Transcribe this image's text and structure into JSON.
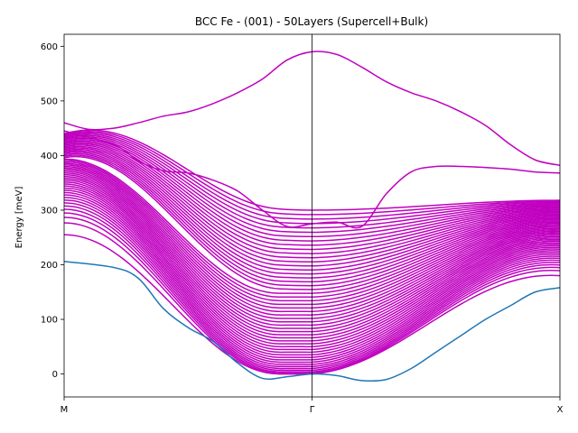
{
  "chart_data": {
    "type": "line",
    "title": "BCC Fe - (001) - 50Layers (Supercell+Bulk)",
    "xlabel": "",
    "ylabel": "Energy [meV]",
    "x_ticks": [
      "M",
      "Γ",
      "X"
    ],
    "xlim": [
      0,
      1
    ],
    "ylim": [
      -42,
      622
    ],
    "y_ticks": [
      0,
      100,
      200,
      300,
      400,
      500,
      600
    ],
    "grid": false,
    "vertical_line_at": 0.5,
    "colors": {
      "bulk": "#1f77b4",
      "supercell": "#c000c0"
    },
    "bulk_band": {
      "x": [
        0,
        0.1,
        0.15,
        0.2,
        0.25,
        0.3,
        0.35,
        0.4,
        0.45,
        0.5,
        0.55,
        0.6,
        0.65,
        0.7,
        0.75,
        0.8,
        0.85,
        0.9,
        0.95,
        1.0
      ],
      "y": [
        206,
        195,
        175,
        120,
        85,
        60,
        20,
        -8,
        -5,
        0,
        -3,
        -12,
        -10,
        10,
        40,
        70,
        100,
        125,
        150,
        158
      ]
    },
    "top_band": {
      "x": [
        0,
        0.05,
        0.1,
        0.15,
        0.2,
        0.25,
        0.3,
        0.35,
        0.4,
        0.45,
        0.5,
        0.55,
        0.6,
        0.65,
        0.7,
        0.75,
        0.8,
        0.85,
        0.9,
        0.95,
        1.0
      ],
      "y": [
        460,
        448,
        450,
        460,
        472,
        480,
        495,
        515,
        540,
        575,
        590,
        585,
        562,
        535,
        515,
        500,
        480,
        455,
        420,
        392,
        382
      ]
    },
    "second_band": {
      "x": [
        0,
        0.1,
        0.15,
        0.2,
        0.25,
        0.3,
        0.35,
        0.4,
        0.45,
        0.5,
        0.55,
        0.6,
        0.65,
        0.7,
        0.75,
        0.8,
        0.85,
        0.9,
        0.95,
        1.0
      ],
      "y": [
        445,
        420,
        390,
        372,
        368,
        355,
        335,
        300,
        270,
        275,
        278,
        270,
        330,
        370,
        380,
        380,
        378,
        375,
        370,
        368
      ]
    },
    "supercell_band_count": 50,
    "supercell_bands": {
      "x_nodes": [
        0,
        0.5,
        1.0
      ],
      "gamma_min": 0,
      "gamma_max": 300,
      "m_min": 255,
      "m_max": 440,
      "x_min": 180,
      "x_max": 318
    }
  }
}
